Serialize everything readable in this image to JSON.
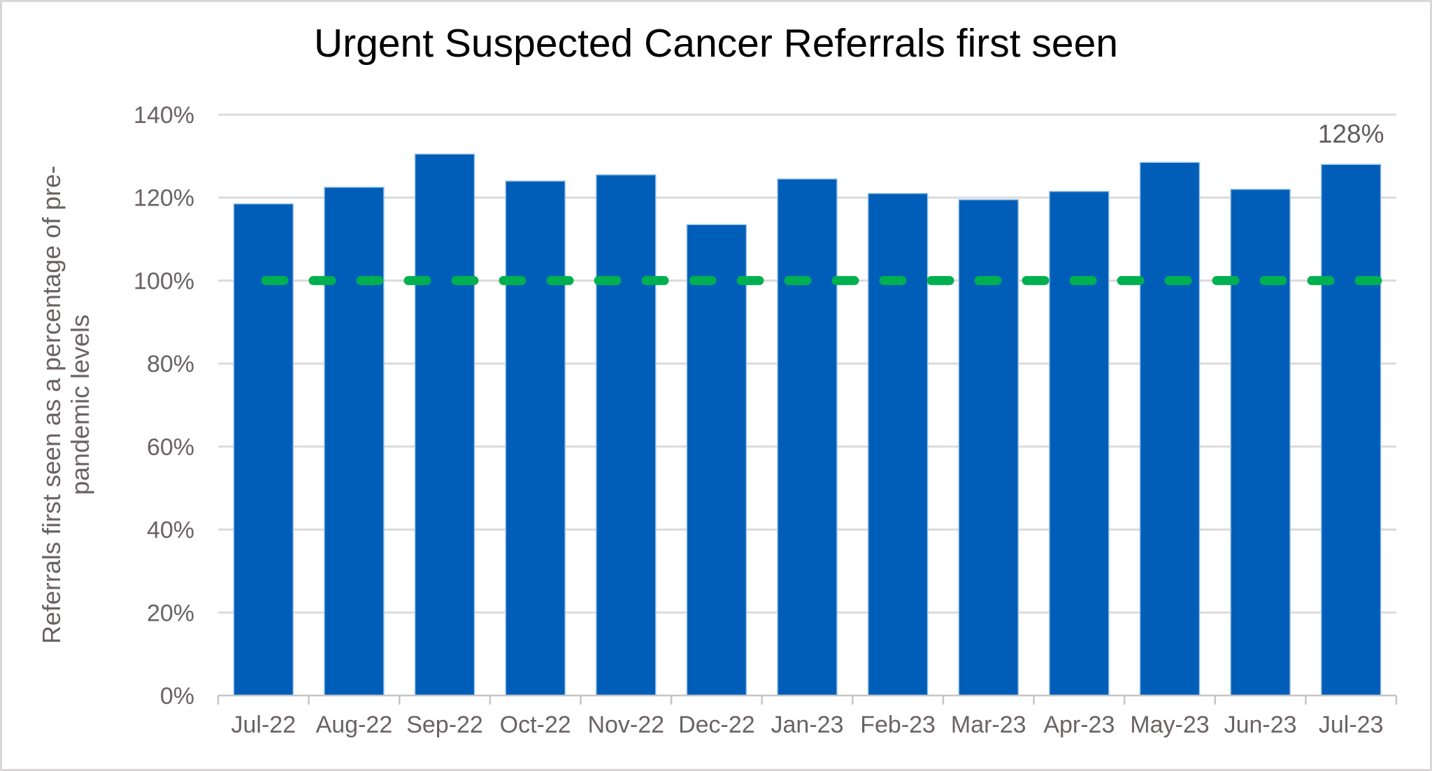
{
  "chart_data": {
    "type": "bar",
    "title": "Urgent Suspected Cancer Referrals first seen",
    "ylabel": "Referrals first seen as a percentage of pre-pandemic levels",
    "ylabel_lines": [
      "Referrals first seen as a percentage of pre-",
      "pandemic levels"
    ],
    "xlabel": "",
    "categories": [
      "Jul-22",
      "Aug-22",
      "Sep-22",
      "Oct-22",
      "Nov-22",
      "Dec-22",
      "Jan-23",
      "Feb-23",
      "Mar-23",
      "Apr-23",
      "May-23",
      "Jun-23",
      "Jul-23"
    ],
    "values": [
      118.5,
      122.5,
      130.5,
      124,
      125.5,
      113.5,
      124.5,
      121,
      119.5,
      121.5,
      128.5,
      122,
      128
    ],
    "ylim": [
      0,
      140
    ],
    "ytick_values": [
      0,
      20,
      40,
      60,
      80,
      100,
      120,
      140
    ],
    "ytick_suffix": "%",
    "grid": "horizontal",
    "legend": "none",
    "reference_line": {
      "value": 100,
      "style": "dashed",
      "color": "#00B050"
    },
    "annotations": [
      {
        "category": "Jul-23",
        "text": "128%"
      }
    ],
    "colors": {
      "bar": "#005EB8",
      "bar_edge": "#9CC2E5",
      "grid": "#DCDADB",
      "axis": "#C6C4C5",
      "text": "#6A6263",
      "data_label": "#615A5B",
      "title": "#000000",
      "background": "#FFFFFF",
      "frame_border": "#D8D6D7"
    }
  }
}
